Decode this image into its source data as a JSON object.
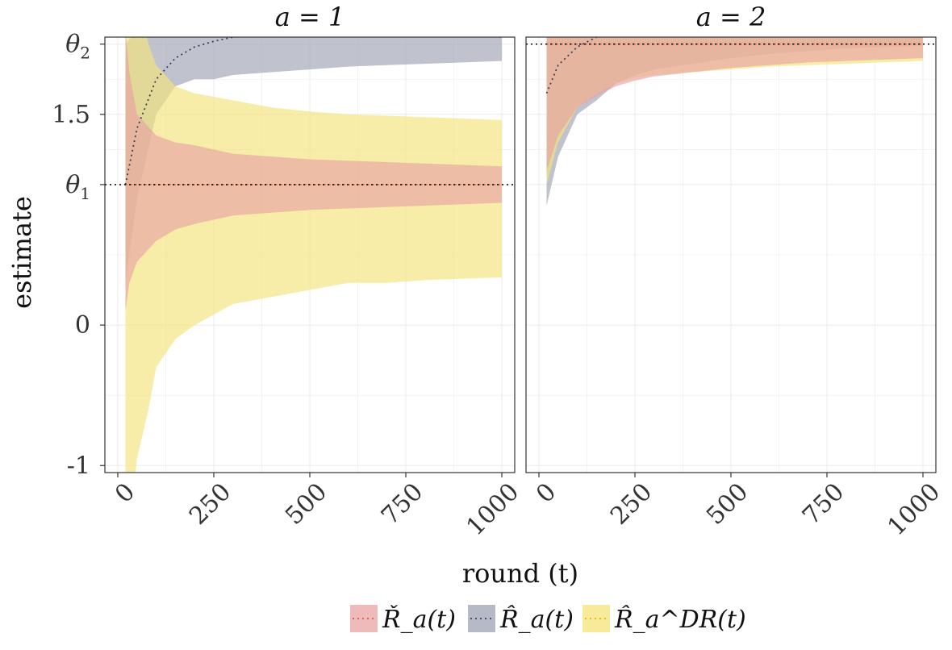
{
  "chart_data": {
    "type": "area",
    "ylabel": "estimate",
    "xlabel": "round (t)",
    "xlim": [
      0,
      1000
    ],
    "ylim": [
      -1.05,
      2.05
    ],
    "x_ticks": [
      0,
      250,
      500,
      750,
      1000
    ],
    "x_tick_labels": [
      "0",
      "250",
      "500",
      "750",
      "1000"
    ],
    "y_ticks": [
      {
        "value": -1,
        "label": "-1"
      },
      {
        "value": 0,
        "label": "0"
      },
      {
        "value": 1.0,
        "label": "θ1"
      },
      {
        "value": 1.5,
        "label": "1.5"
      },
      {
        "value": 2.0,
        "label": "θ2"
      }
    ],
    "grid": true,
    "legend_position": "bottom",
    "reference_lines": [
      {
        "panel": "a = 1",
        "value": 1.0
      },
      {
        "panel": "a = 2",
        "value": 2.0
      }
    ],
    "series": [
      {
        "name": "Ř_a(t)",
        "color": "#e8a3a3",
        "line_color": "#d9534f"
      },
      {
        "name": "R̂_a(t)",
        "color": "#9ea3b3",
        "line_color": "#3a3f55"
      },
      {
        "name": "R̂_a^DR(t)",
        "color": "#f5e37a",
        "line_color": "#e0b800"
      }
    ],
    "panels": [
      {
        "title": "a = 1",
        "bands": [
          {
            "series": "R̂_a(t)",
            "x": [
              20,
              50,
              100,
              150,
              200,
              250,
              300,
              400,
              500,
              600,
              700,
              800,
              900,
              1000
            ],
            "lower": [
              0.3,
              0.9,
              1.5,
              1.7,
              1.75,
              1.75,
              1.78,
              1.8,
              1.82,
              1.84,
              1.85,
              1.86,
              1.87,
              1.88
            ],
            "upper": [
              2.0,
              2.1,
              2.3,
              2.4,
              2.35,
              2.33,
              2.32,
              2.31,
              2.3,
              2.3,
              2.29,
              2.29,
              2.28,
              2.27
            ],
            "mean": [
              1.0,
              1.4,
              1.75,
              1.9,
              1.98,
              2.02,
              2.05,
              2.07,
              2.09,
              2.1,
              2.1,
              2.11,
              2.11,
              2.11
            ]
          },
          {
            "series": "R̂_a^DR(t)",
            "x": [
              20,
              30,
              50,
              80,
              100,
              150,
              200,
              300,
              400,
              500,
              600,
              700,
              800,
              900,
              1000
            ],
            "lower": [
              -1.8,
              -1.5,
              -0.95,
              -0.6,
              -0.3,
              -0.1,
              0.0,
              0.15,
              0.2,
              0.25,
              0.3,
              0.3,
              0.32,
              0.33,
              0.34
            ],
            "upper": [
              3.6,
              3.2,
              2.4,
              2.0,
              1.85,
              1.7,
              1.65,
              1.6,
              1.55,
              1.52,
              1.5,
              1.49,
              1.48,
              1.47,
              1.46
            ],
            "mean": [
              1.0,
              1.0,
              1.0,
              1.0,
              1.0,
              1.0,
              1.0,
              1.0,
              1.0,
              1.0,
              1.0,
              1.0,
              1.0,
              1.0,
              1.0
            ]
          },
          {
            "series": "Ř_a(t)",
            "x": [
              20,
              30,
              50,
              100,
              150,
              200,
              250,
              300,
              400,
              500,
              600,
              700,
              800,
              900,
              1000
            ],
            "lower": [
              0.1,
              0.3,
              0.45,
              0.6,
              0.68,
              0.72,
              0.75,
              0.78,
              0.8,
              0.82,
              0.83,
              0.84,
              0.85,
              0.86,
              0.87
            ],
            "upper": [
              2.1,
              1.8,
              1.5,
              1.35,
              1.3,
              1.28,
              1.25,
              1.22,
              1.2,
              1.18,
              1.17,
              1.16,
              1.15,
              1.14,
              1.13
            ],
            "mean": [
              1.0,
              1.0,
              1.0,
              1.0,
              1.0,
              1.0,
              1.0,
              1.0,
              1.0,
              1.0,
              1.0,
              1.0,
              1.0,
              1.0,
              1.0
            ]
          }
        ]
      },
      {
        "title": "a = 2",
        "bands": [
          {
            "series": "R̂_a(t)",
            "x": [
              20,
              50,
              100,
              150,
              200,
              250,
              300,
              400,
              500,
              600,
              700,
              800,
              900,
              1000
            ],
            "lower": [
              0.85,
              1.2,
              1.5,
              1.6,
              1.72,
              1.78,
              1.82,
              1.86,
              1.9,
              1.93,
              1.95,
              1.97,
              1.98,
              1.99
            ],
            "upper": [
              3.2,
              2.8,
              2.6,
              2.5,
              2.45,
              2.4,
              2.38,
              2.33,
              2.3,
              2.28,
              2.27,
              2.26,
              2.25,
              2.24
            ],
            "mean": [
              1.65,
              1.85,
              1.98,
              2.05,
              2.08,
              2.1,
              2.11,
              2.12,
              2.13,
              2.14,
              2.14,
              2.15,
              2.15,
              2.15
            ]
          },
          {
            "series": "R̂_a^DR(t)",
            "x": [
              20,
              50,
              100,
              150,
              200,
              250,
              300,
              400,
              500,
              600,
              700,
              800,
              900,
              1000
            ],
            "lower": [
              1.0,
              1.3,
              1.55,
              1.65,
              1.72,
              1.76,
              1.78,
              1.8,
              1.82,
              1.84,
              1.85,
              1.86,
              1.87,
              1.88
            ],
            "upper": [
              3.0,
              2.6,
              2.4,
              2.32,
              2.28,
              2.25,
              2.23,
              2.2,
              2.18,
              2.17,
              2.16,
              2.15,
              2.14,
              2.13
            ],
            "mean": [
              2.0,
              2.0,
              2.0,
              2.0,
              2.0,
              2.0,
              2.0,
              2.0,
              2.0,
              2.0,
              2.0,
              2.0,
              2.0,
              2.0
            ]
          },
          {
            "series": "Ř_a(t)",
            "x": [
              20,
              50,
              100,
              150,
              200,
              250,
              300,
              400,
              500,
              600,
              700,
              800,
              900,
              1000
            ],
            "lower": [
              1.1,
              1.35,
              1.55,
              1.63,
              1.7,
              1.74,
              1.77,
              1.8,
              1.83,
              1.85,
              1.87,
              1.88,
              1.89,
              1.9
            ],
            "upper": [
              2.9,
              2.55,
              2.35,
              2.28,
              2.24,
              2.22,
              2.2,
              2.18,
              2.16,
              2.15,
              2.14,
              2.13,
              2.12,
              2.11
            ],
            "mean": [
              2.0,
              2.0,
              2.0,
              2.0,
              2.0,
              2.0,
              2.0,
              2.0,
              2.0,
              2.0,
              2.0,
              2.0,
              2.0,
              2.0
            ]
          }
        ]
      }
    ]
  }
}
